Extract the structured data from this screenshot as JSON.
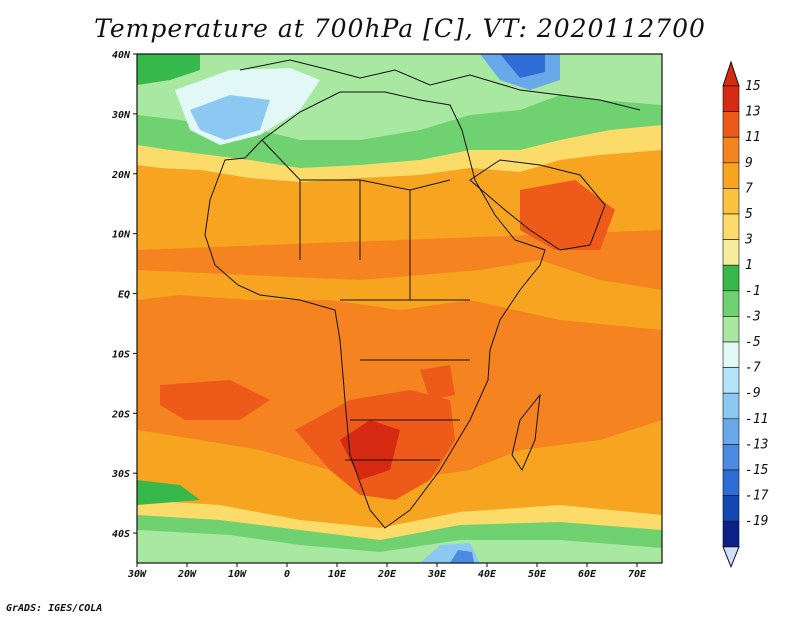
{
  "title": "Temperature at 700hPa [C], VT: 2020112700",
  "footer": "GrADS: IGES/COLA",
  "map": {
    "lon_labels": [
      "30W",
      "20W",
      "10W",
      "0",
      "10E",
      "20E",
      "30E",
      "40E",
      "50E",
      "60E",
      "70E"
    ],
    "lat_labels": [
      "40N",
      "30N",
      "20N",
      "10N",
      "EQ",
      "10S",
      "20S",
      "30S",
      "40S"
    ]
  },
  "colorbar": {
    "labels": [
      "15",
      "13",
      "11",
      "9",
      "7",
      "5",
      "3",
      "1",
      "-1",
      "-3",
      "-5",
      "-7",
      "-9",
      "-11",
      "-13",
      "-15",
      "-17",
      "-19"
    ],
    "colors": [
      "#d62a12",
      "#ee5a1a",
      "#f5831f",
      "#f7a521",
      "#fac33f",
      "#fbdc6a",
      "#f6ed9c",
      "#36b84a",
      "#6fd170",
      "#a9e8a1",
      "#e2f8f6",
      "#b4e2f7",
      "#8cc9f2",
      "#6aa9e9",
      "#4a8ae0",
      "#2e6cd6",
      "#1547b4",
      "#0b2188"
    ],
    "upper_arrow_color": "#d62a12",
    "lower_arrow_color": "#d2dcfb"
  }
}
